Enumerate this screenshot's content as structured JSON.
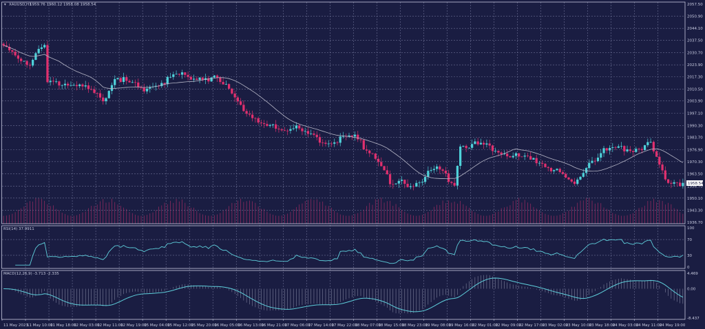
{
  "header": {
    "symbol": "XAUUSD,H1",
    "ohlc": "1959.76 1960.12 1958.08 1958.54"
  },
  "rsi": {
    "title": "RSI(14) 37.9911",
    "levels": [
      "100",
      "70",
      "30",
      "0"
    ]
  },
  "macd": {
    "title": "MACD(12,26,9) -3.713 -2.335",
    "levels": [
      "4.469",
      "0.00",
      "-8.437"
    ]
  },
  "current_price": "1958.54",
  "colors": {
    "background": "#1a1d42",
    "bull": "#4fd1d9",
    "bear": "#e0306e",
    "ma": "#b8b8c8",
    "rsi": "#5fd0dc",
    "macd": "#5fd0dc",
    "volume": "#c0306a"
  },
  "chart_data": {
    "type": "candlestick",
    "price_axis": [
      "2057.50",
      "2050.90",
      "2044.10",
      "2037.50",
      "2030.70",
      "2023.90",
      "2017.30",
      "2010.50",
      "2003.90",
      "1997.10",
      "1990.30",
      "1983.70",
      "1976.90",
      "1970.30",
      "1963.50",
      "1956.70",
      "1950.10",
      "1943.30",
      "1936.70"
    ],
    "ylim": [
      1936.7,
      2057.5
    ],
    "time_axis": [
      "11 May 2023",
      "11 May 10:00",
      "11 May 18:00",
      "12 May 03:00",
      "12 May 11:00",
      "12 May 19:00",
      "15 May 04:00",
      "15 May 12:00",
      "15 May 20:00",
      "16 May 05:00",
      "16 May 13:00",
      "16 May 21:00",
      "17 May 06:00",
      "17 May 14:00",
      "17 May 22:00",
      "18 May 07:00",
      "18 May 15:00",
      "18 May 23:00",
      "19 May 08:00",
      "19 May 16:00",
      "22 May 01:00",
      "22 May 09:00",
      "22 May 17:00",
      "23 May 02:00",
      "23 May 10:00",
      "23 May 18:00",
      "24 May 03:00",
      "24 May 11:00",
      "24 May 19:00"
    ],
    "bars_per_label": 8,
    "close_keypoints": [
      [
        0,
        2032.8
      ],
      [
        9,
        2025
      ],
      [
        14,
        2034.7
      ],
      [
        15,
        2013.8
      ],
      [
        24,
        2014.6
      ],
      [
        34,
        2004.3
      ],
      [
        38,
        2017.6
      ],
      [
        47,
        2010.8
      ],
      [
        61,
        2018.4
      ],
      [
        73,
        2015.7
      ],
      [
        78,
        2008
      ],
      [
        87,
        1991
      ],
      [
        89,
        1989
      ],
      [
        99,
        1989
      ],
      [
        108,
        1981.5
      ],
      [
        120,
        1983.4
      ],
      [
        128,
        1972
      ],
      [
        132,
        1957.6
      ],
      [
        141,
        1958.7
      ],
      [
        148,
        1966.3
      ],
      [
        154,
        1958.7
      ],
      [
        156,
        1979.6
      ],
      [
        165,
        1979.6
      ],
      [
        174,
        1973.9
      ],
      [
        186,
        1968.2
      ],
      [
        195,
        1957.6
      ],
      [
        200,
        1970
      ],
      [
        205,
        1975.8
      ],
      [
        215,
        1977.7
      ],
      [
        221,
        1979.6
      ],
      [
        226,
        1960.6
      ],
      [
        232,
        1958.54
      ]
    ],
    "indicators": [
      "SMA(20)",
      "Volume",
      "RSI(14)",
      "MACD(12,26,9)"
    ]
  }
}
